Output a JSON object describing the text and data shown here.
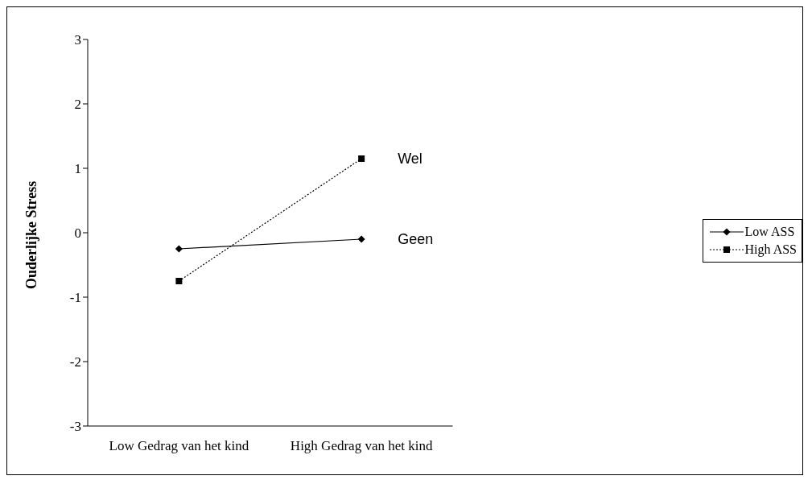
{
  "chart_data": {
    "type": "line",
    "ylabel": "Ouderlijke Stress",
    "categories": [
      "Low Gedrag van het kind",
      "High Gedrag van het kind"
    ],
    "series": [
      {
        "name": "Low ASS",
        "color": "#000000",
        "values": [
          -0.25,
          -0.1
        ],
        "marker": "diamond",
        "line_style": "solid"
      },
      {
        "name": "High ASS",
        "color": "#000000",
        "values": [
          -0.75,
          1.15
        ],
        "marker": "square",
        "line_style": "dotted"
      }
    ],
    "ylim": [
      -3,
      3
    ],
    "yticks": [
      -3,
      -2,
      -1,
      0,
      1,
      2,
      3
    ],
    "grid": false,
    "legend": "right",
    "annotations": [
      {
        "text": "Wel",
        "x": "High Gedrag van het kind",
        "y": 1.15
      },
      {
        "text": "Geen",
        "x": "High Gedrag van het kind",
        "y": -0.1
      }
    ]
  }
}
